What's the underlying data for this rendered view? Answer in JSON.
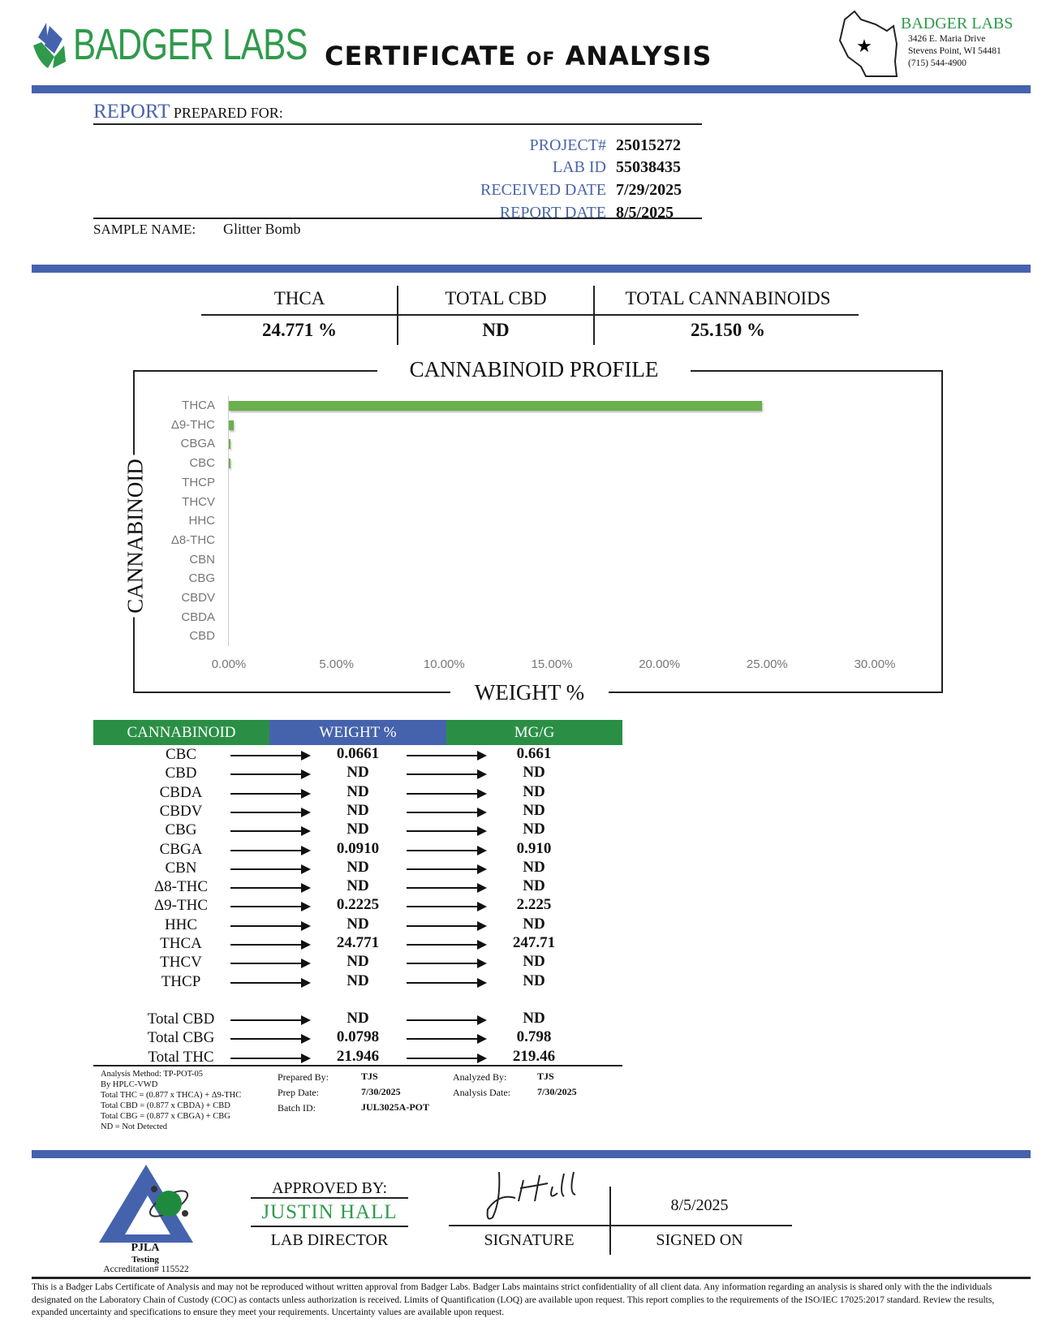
{
  "header": {
    "brand": "BADGER LABS",
    "title_a": "CERTIFICATE",
    "title_b": "OF",
    "title_c": "ANALYSIS",
    "address": {
      "name": "BADGER LABS",
      "street": "3426 E. Maria Drive",
      "city": "Stevens Point, WI 54481",
      "phone": "(715) 544-4900"
    }
  },
  "report": {
    "heading_a": "REPORT",
    "heading_b": "PREPARED FOR:",
    "fields": [
      {
        "label": "PROJECT#",
        "value": "25015272"
      },
      {
        "label": "LAB ID",
        "value": "55038435"
      },
      {
        "label": "RECEIVED DATE",
        "value": "7/29/2025"
      },
      {
        "label": "REPORT DATE",
        "value": "8/5/2025"
      }
    ],
    "sample_label": "SAMPLE NAME:",
    "sample_name": "Glitter Bomb"
  },
  "summary": [
    {
      "label": "THCA",
      "value": "24.771 %"
    },
    {
      "label": "TOTAL CBD",
      "value": "ND"
    },
    {
      "label": "TOTAL CANNABINOIDS",
      "value": "25.150 %"
    }
  ],
  "colors": {
    "blue": "#4563ad",
    "green": "#2f9a4b",
    "bar": "#6ab04c"
  },
  "chart_data": {
    "type": "bar",
    "orientation": "horizontal",
    "title": "CANNABINOID PROFILE",
    "xlabel": "WEIGHT %",
    "ylabel": "CANNABINOID",
    "categories": [
      "THCA",
      "Δ9-THC",
      "CBGA",
      "CBC",
      "THCP",
      "THCV",
      "HHC",
      "Δ8-THC",
      "CBN",
      "CBG",
      "CBDV",
      "CBDA",
      "CBD"
    ],
    "values": [
      24.771,
      0.2225,
      0.091,
      0.0661,
      0,
      0,
      0,
      0,
      0,
      0,
      0,
      0,
      0
    ],
    "xlim": [
      0,
      30
    ],
    "xticks": [
      "0.00%",
      "5.00%",
      "10.00%",
      "15.00%",
      "20.00%",
      "25.00%",
      "30.00%"
    ],
    "grid": false
  },
  "table": {
    "headers": [
      "CANNABINOID",
      "WEIGHT %",
      "MG/G"
    ],
    "rows": [
      [
        "CBC",
        "0.0661",
        "0.661"
      ],
      [
        "CBD",
        "ND",
        "ND"
      ],
      [
        "CBDA",
        "ND",
        "ND"
      ],
      [
        "CBDV",
        "ND",
        "ND"
      ],
      [
        "CBG",
        "ND",
        "ND"
      ],
      [
        "CBGA",
        "0.0910",
        "0.910"
      ],
      [
        "CBN",
        "ND",
        "ND"
      ],
      [
        "Δ8-THC",
        "ND",
        "ND"
      ],
      [
        "Δ9-THC",
        "0.2225",
        "2.225"
      ],
      [
        "HHC",
        "ND",
        "ND"
      ],
      [
        "THCA",
        "24.771",
        "247.71"
      ],
      [
        "THCV",
        "ND",
        "ND"
      ],
      [
        "THCP",
        "ND",
        "ND"
      ]
    ],
    "totals": [
      [
        "Total CBD",
        "ND",
        "ND"
      ],
      [
        "Total CBG",
        "0.0798",
        "0.798"
      ],
      [
        "Total THC",
        "21.946",
        "219.46"
      ]
    ]
  },
  "notes": [
    "Analysis Method: TP-POT-05",
    "By HPLC-VWD",
    "Total THC = (0.877 x  THCA) + Δ9-THC",
    "Total CBD = (0.877 x  CBDA) + CBD",
    "Total CBG = (0.877 x  CBGA) + CBG",
    "ND = Not Detected"
  ],
  "meta": {
    "prepared_by_label": "Prepared By:",
    "prepared_by": "TJS",
    "prep_date_label": "Prep Date:",
    "prep_date": "7/30/2025",
    "batch_label": "Batch ID:",
    "batch": "JUL3025A-POT",
    "analyzed_by_label": "Analyzed By:",
    "analyzed_by": "TJS",
    "analysis_date_label": "Analysis Date:",
    "analysis_date": "7/30/2025"
  },
  "approval": {
    "pjla": "PJLA",
    "testing": "Testing",
    "accreditation": "Accreditation# 115522",
    "approved_by": "APPROVED BY:",
    "name": "JUSTIN HALL",
    "role": "LAB DIRECTOR",
    "signature_label": "SIGNATURE",
    "signed_on_label": "SIGNED ON",
    "signed_on": "8/5/2025"
  },
  "disclaimer": "This is a Badger Labs Certificate of Analysis and may not be reproduced without written approval from Badger Labs. Badger Labs maintains strict confidentiality of all client data. Any information regarding an analysis is shared only with the the individuals designated on the Laboratory Chain of Custody (COC) as contacts unless authorization is received. Limits of Quantification (LOQ) are available upon request. This report complies to the requirements of the ISO/IEC 17025:2017 standard. Review the results, expanded uncertainty and specifications to ensure they meet your requirements. Uncertainty values are available upon request."
}
